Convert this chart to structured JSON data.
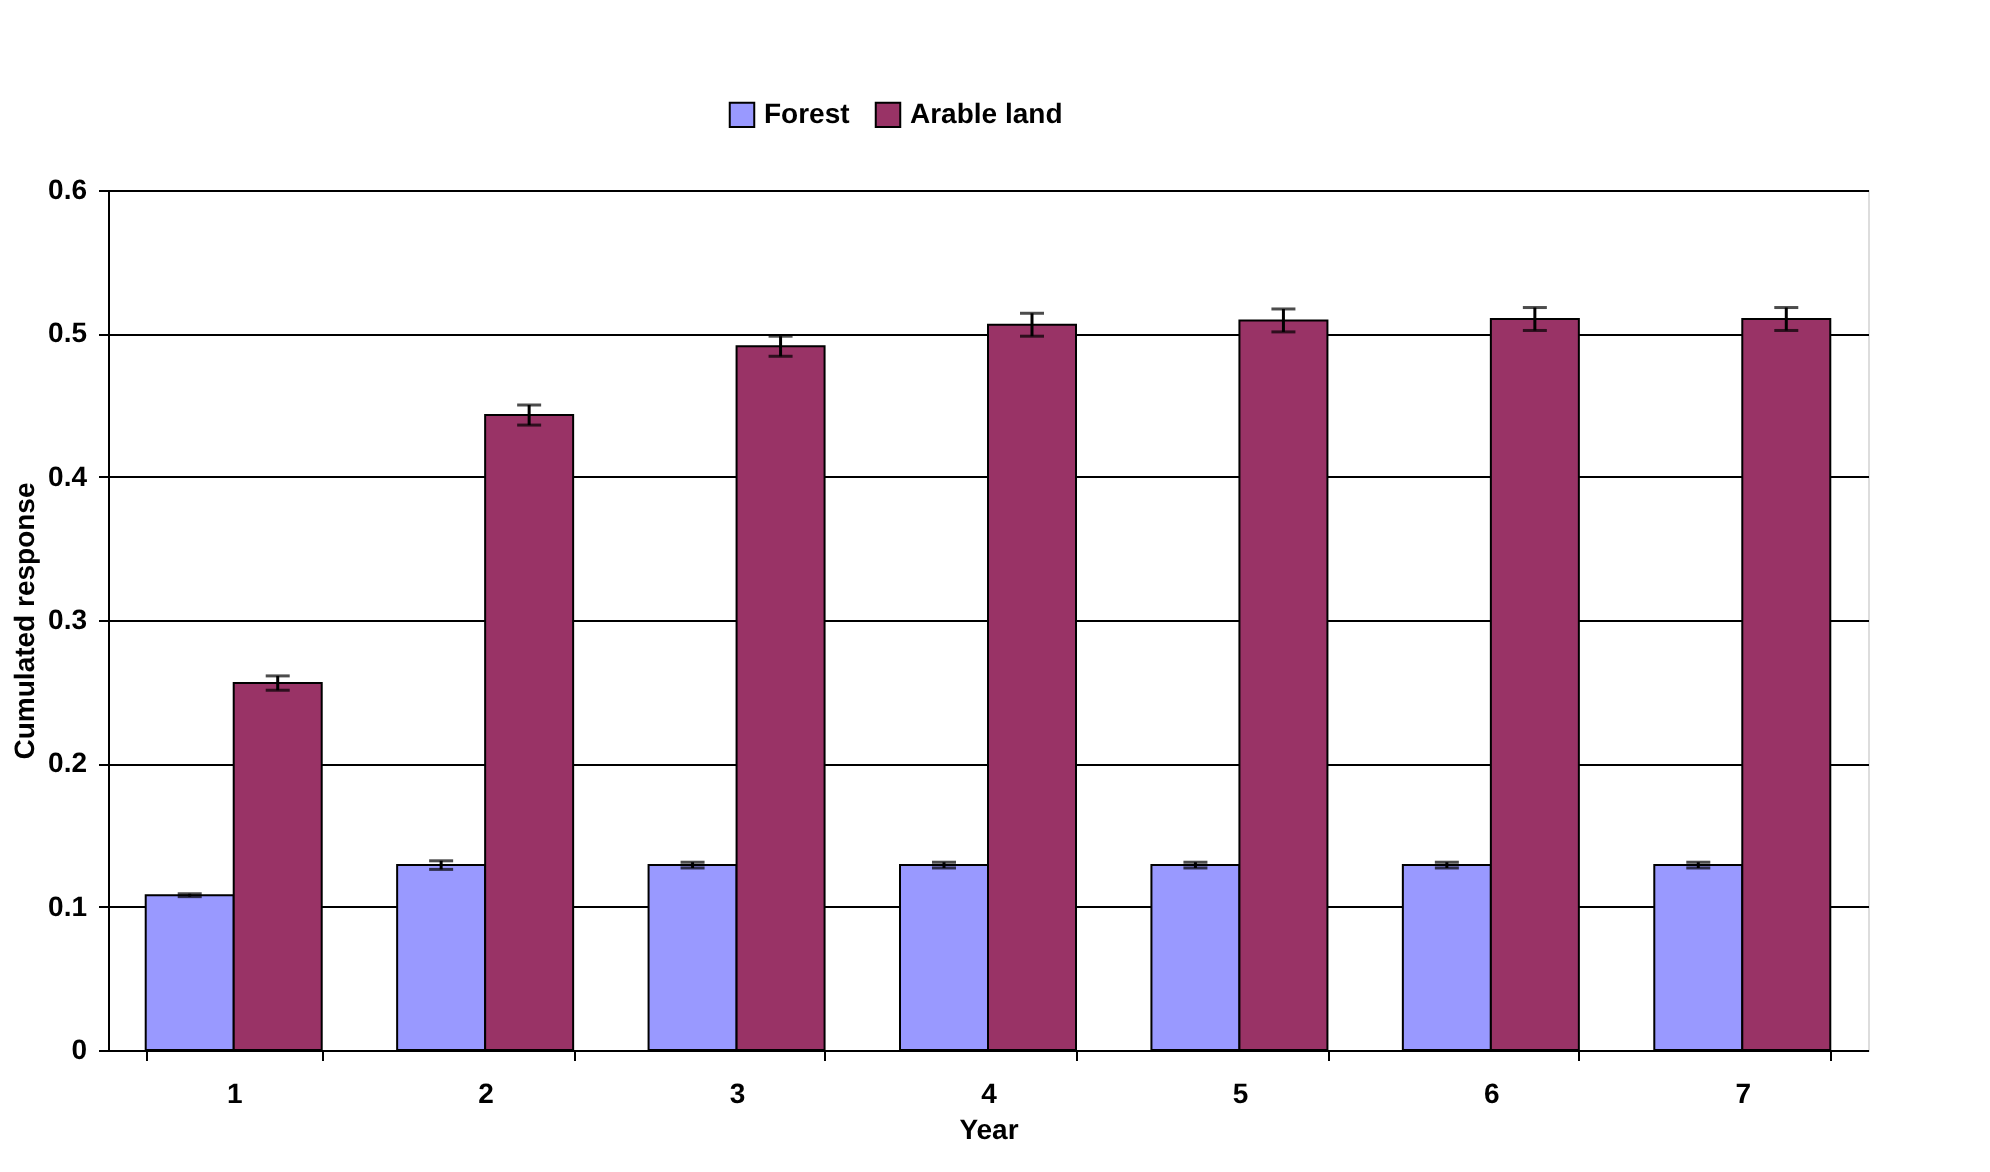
{
  "chart_data": {
    "type": "bar",
    "xlabel": "Year",
    "ylabel": "Cumulated response",
    "categories": [
      "1",
      "2",
      "3",
      "4",
      "5",
      "6",
      "7"
    ],
    "series": [
      {
        "name": "Forest",
        "color": "#9999ff",
        "values": [
          0.108,
          0.129,
          0.129,
          0.129,
          0.129,
          0.129,
          0.129
        ],
        "errors": [
          0.001,
          0.003,
          0.002,
          0.002,
          0.002,
          0.002,
          0.002
        ]
      },
      {
        "name": "Arable land",
        "color": "#993366",
        "values": [
          0.256,
          0.443,
          0.491,
          0.506,
          0.509,
          0.51,
          0.51
        ],
        "errors": [
          0.005,
          0.007,
          0.007,
          0.008,
          0.008,
          0.008,
          0.008
        ]
      }
    ],
    "ylim": [
      0,
      0.6
    ],
    "yticks": [
      0,
      0.1,
      0.2,
      0.3,
      0.4,
      0.5,
      0.6
    ],
    "grid": "y",
    "legend": "top"
  }
}
